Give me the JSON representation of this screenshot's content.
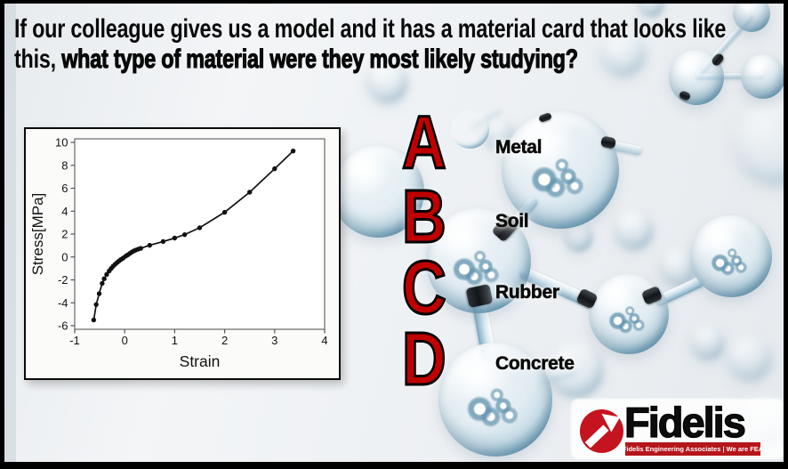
{
  "title": {
    "line1": "If our colleague gives us a model and it has a material card that looks like",
    "line2_normal": "this, ",
    "line2_bold": "what type of material were they most likely studying?"
  },
  "options": [
    {
      "letter": "A",
      "label": "Metal"
    },
    {
      "letter": "B",
      "label": "Soil"
    },
    {
      "letter": "C",
      "label": "Rubber"
    },
    {
      "letter": "D",
      "label": "Concrete"
    }
  ],
  "chart_data": {
    "type": "line",
    "title": "",
    "xlabel": "Strain",
    "ylabel": "Stress[MPa]",
    "xlim": [
      -1,
      4
    ],
    "ylim": [
      -6,
      10
    ],
    "xticks": [
      -1,
      0,
      1,
      2,
      3,
      4
    ],
    "yticks": [
      -6,
      -4,
      -2,
      0,
      2,
      4,
      6,
      8,
      10
    ],
    "grid": false,
    "marker": "point",
    "legend": "none",
    "points": [
      [
        -0.62,
        -5.5
      ],
      [
        -0.57,
        -4.15
      ],
      [
        -0.51,
        -3.2
      ],
      [
        -0.45,
        -2.3
      ],
      [
        -0.41,
        -1.9
      ],
      [
        -0.36,
        -1.52
      ],
      [
        -0.31,
        -1.22
      ],
      [
        -0.27,
        -1.0
      ],
      [
        -0.23,
        -0.8
      ],
      [
        -0.19,
        -0.63
      ],
      [
        -0.15,
        -0.48
      ],
      [
        -0.11,
        -0.34
      ],
      [
        -0.07,
        -0.21
      ],
      [
        -0.03,
        -0.09
      ],
      [
        0.02,
        0.07
      ],
      [
        0.06,
        0.18
      ],
      [
        0.1,
        0.3
      ],
      [
        0.14,
        0.42
      ],
      [
        0.18,
        0.52
      ],
      [
        0.22,
        0.6
      ],
      [
        0.27,
        0.68
      ],
      [
        0.32,
        0.75
      ],
      [
        0.5,
        1.02
      ],
      [
        0.77,
        1.35
      ],
      [
        1.0,
        1.65
      ],
      [
        1.2,
        1.95
      ],
      [
        1.5,
        2.55
      ],
      [
        2.0,
        3.9
      ],
      [
        2.5,
        5.65
      ],
      [
        3.0,
        7.7
      ],
      [
        3.37,
        9.25
      ]
    ]
  },
  "logo": {
    "brand": "Fidelis",
    "tagline": "Fidelis Engineering Associates | We are FEA"
  },
  "colors": {
    "option_letter_red": "#c00000",
    "logo_red": "#c41420",
    "tagline_red": "#b5161b",
    "title_text": "#0a0a0a",
    "curve": "#111111"
  }
}
